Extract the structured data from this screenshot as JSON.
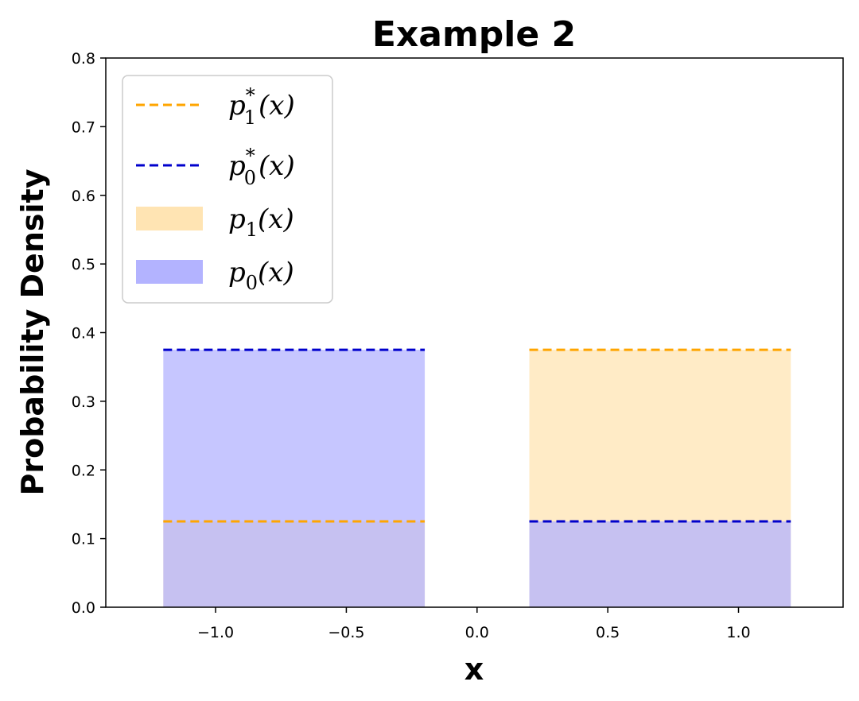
{
  "chart_data": {
    "type": "area",
    "title": "Example 2",
    "xlabel": "x",
    "ylabel": "Probability Density",
    "xlim": [
      -1.42,
      1.4
    ],
    "ylim": [
      0.0,
      0.8
    ],
    "x_ticks": [
      -1.0,
      -0.5,
      0.0,
      0.5,
      1.0
    ],
    "x_tick_labels": [
      "−1.0",
      "−0.5",
      "0.0",
      "0.5",
      "1.0"
    ],
    "y_ticks": [
      0.0,
      0.1,
      0.2,
      0.3,
      0.4,
      0.5,
      0.6,
      0.7,
      0.8
    ],
    "y_tick_labels": [
      "0.0",
      "0.1",
      "0.2",
      "0.3",
      "0.4",
      "0.5",
      "0.6",
      "0.7",
      "0.8"
    ],
    "grid": false,
    "legend_position": "top-left",
    "series": [
      {
        "name": "p1*(x)",
        "legend_base": "p",
        "legend_sub": "1",
        "legend_sup": "*",
        "legend_arg": "(x)",
        "style": "dashed-line",
        "color": "#FFA500",
        "segments": [
          {
            "x": [
              -1.2,
              -0.2
            ],
            "y": 0.125
          },
          {
            "x": [
              0.2,
              1.2
            ],
            "y": 0.375
          }
        ]
      },
      {
        "name": "p0*(x)",
        "legend_base": "p",
        "legend_sub": "0",
        "legend_sup": "*",
        "legend_arg": "(x)",
        "style": "dashed-line",
        "color": "#0000CC",
        "segments": [
          {
            "x": [
              -1.2,
              -0.2
            ],
            "y": 0.375
          },
          {
            "x": [
              0.2,
              1.2
            ],
            "y": 0.125
          }
        ]
      },
      {
        "name": "p1(x)",
        "legend_base": "p",
        "legend_sub": "1",
        "legend_sup": "",
        "legend_arg": "(x)",
        "style": "filled-area",
        "color": "#FFE4B3",
        "segments": [
          {
            "x": [
              -1.2,
              -0.2
            ],
            "y": 0.125
          },
          {
            "x": [
              0.2,
              1.2
            ],
            "y": 0.375
          }
        ]
      },
      {
        "name": "p0(x)",
        "legend_base": "p",
        "legend_sub": "0",
        "legend_sup": "",
        "legend_arg": "(x)",
        "style": "filled-area",
        "color": "#B3B3FF",
        "segments": [
          {
            "x": [
              -1.2,
              -0.2
            ],
            "y": 0.375
          },
          {
            "x": [
              0.2,
              1.2
            ],
            "y": 0.125
          }
        ]
      }
    ]
  }
}
